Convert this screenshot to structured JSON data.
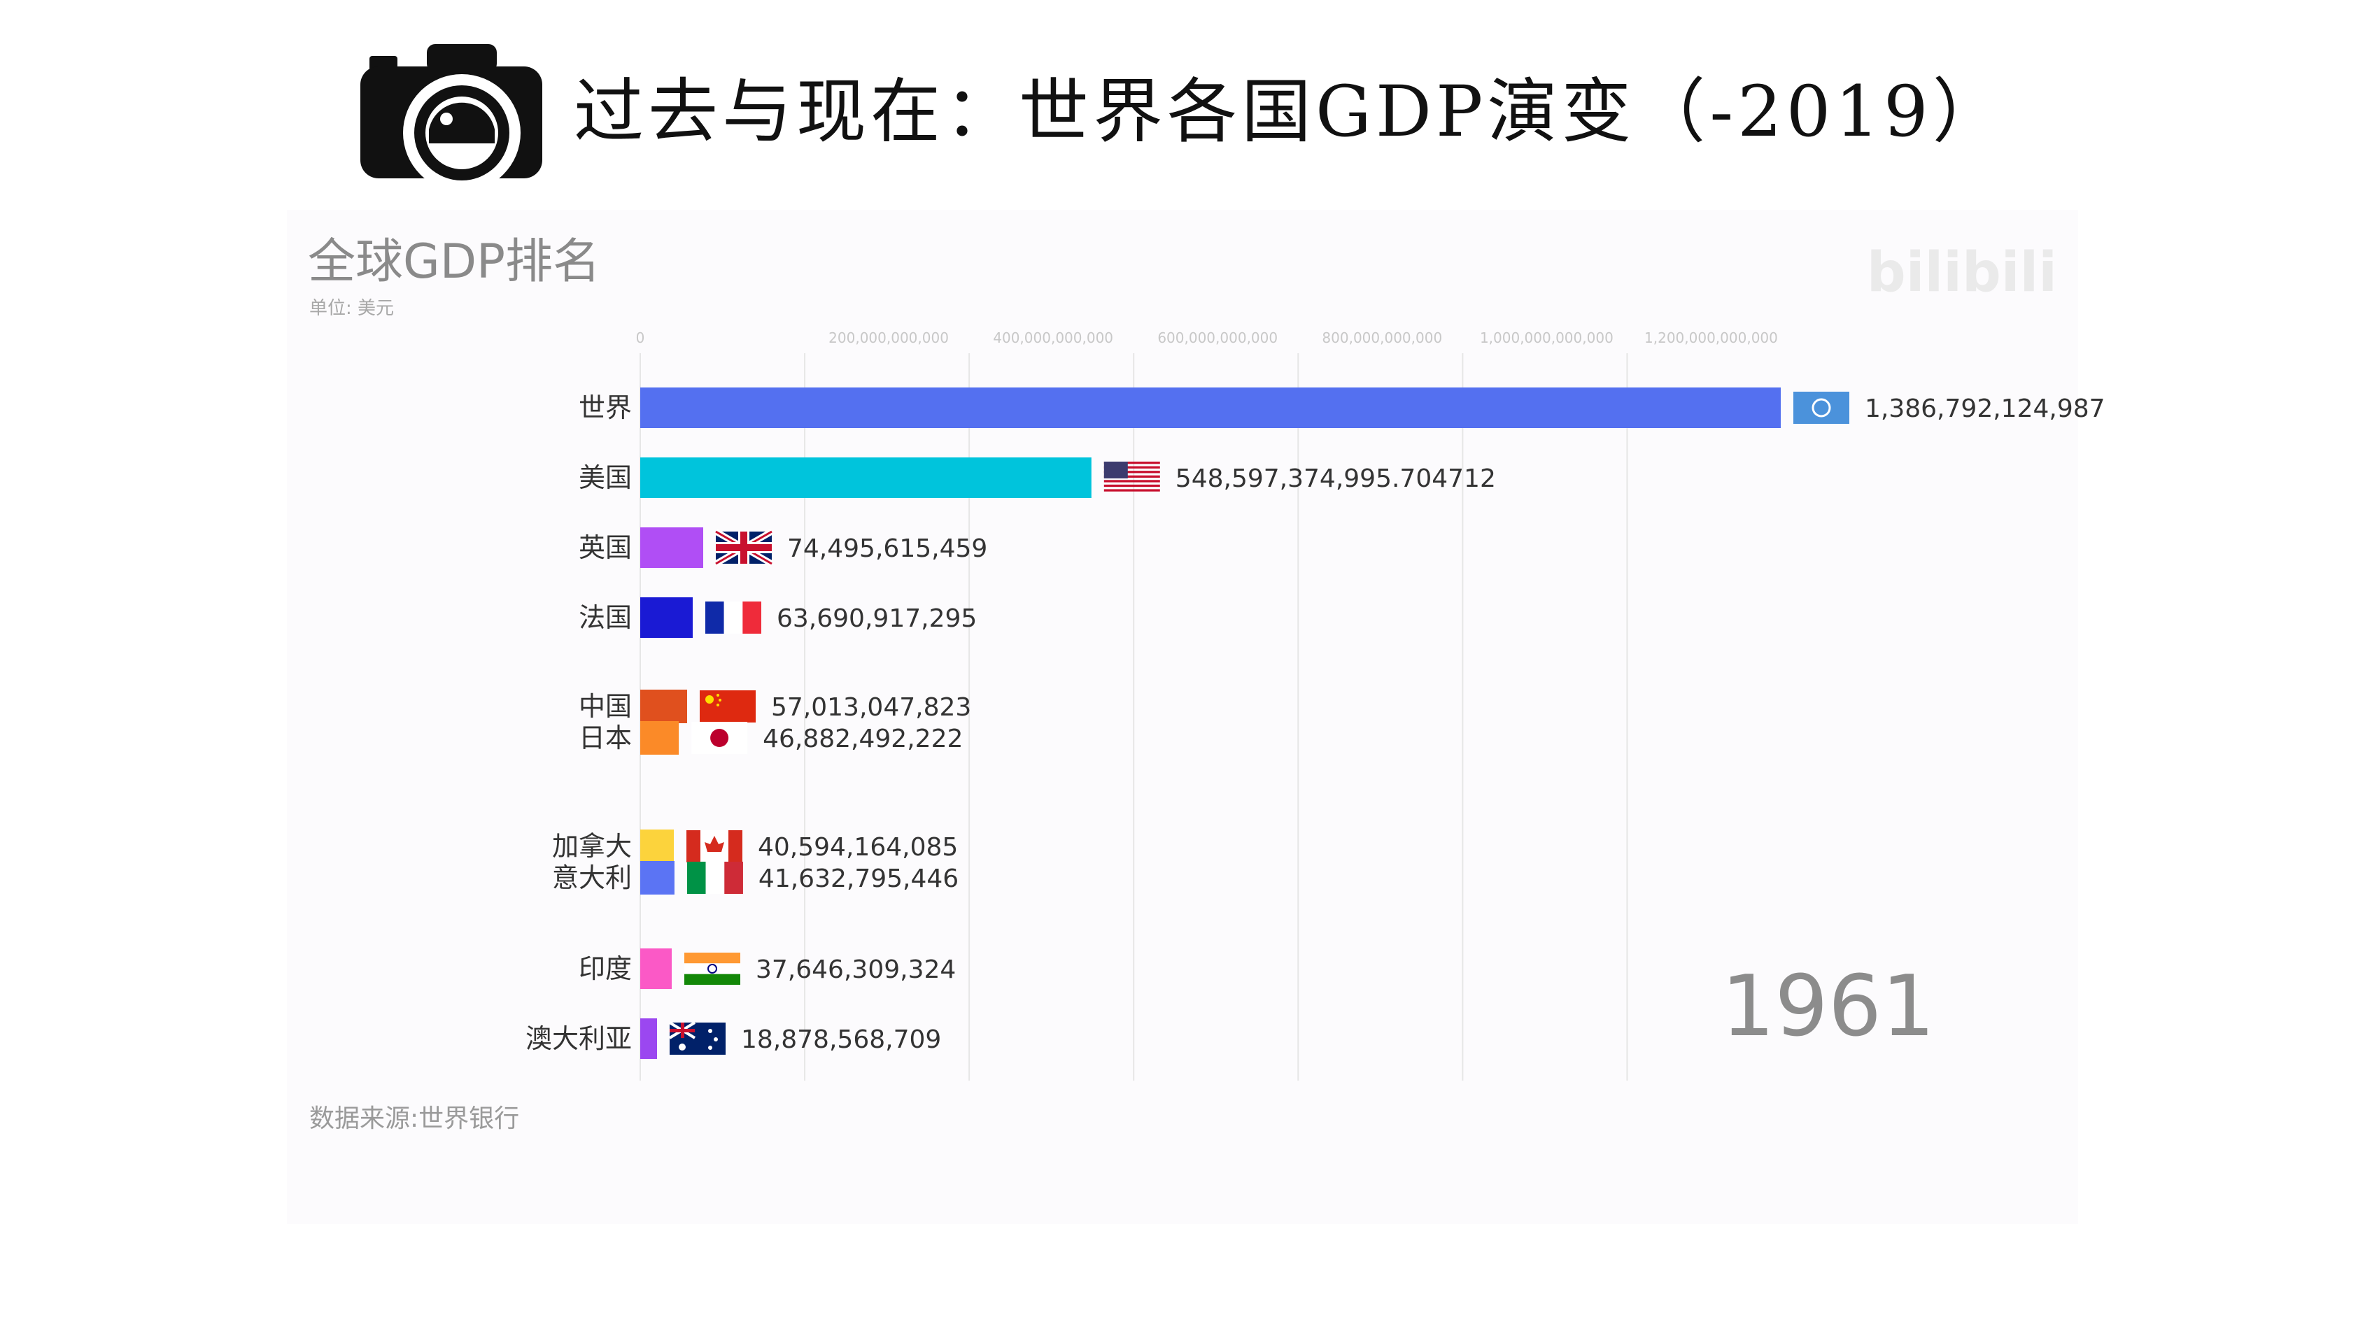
{
  "banner": {
    "title": "过去与现在：世界各国GDP演变（-2019）",
    "icon": "camera-icon"
  },
  "chart": {
    "title": "全球GDP排名",
    "unit": "单位: 美元",
    "source": "数据来源:世界银行",
    "year": "1961",
    "watermark": "bilibili"
  },
  "chart_data": {
    "type": "bar",
    "orientation": "horizontal",
    "title": "全球GDP排名",
    "unit": "单位: 美元",
    "year": "1961",
    "xlim": [
      0,
      1386792124987
    ],
    "x_ticks": [
      0,
      200000000000,
      400000000000,
      600000000000,
      800000000000,
      1000000000000,
      1200000000000
    ],
    "x_tick_labels": [
      "0",
      "200,000,000,000",
      "400,000,000,000",
      "600,000,000,000",
      "800,000,000,000",
      "1,000,000,000,000",
      "1,200,000,000,000"
    ],
    "grid": true,
    "categories": [
      "世界",
      "美国",
      "英国",
      "法国",
      "中国",
      "日本",
      "加拿大",
      "意大利",
      "印度",
      "澳大利亚"
    ],
    "values": [
      1386792124987,
      548597374995.7047,
      74495615459,
      63690917295,
      57013047823,
      46882492222,
      40594164085,
      41632795446,
      37646309324,
      18878568709
    ],
    "value_labels": [
      "1,386,792,124,987",
      "548,597,374,995.704712",
      "74,495,615,459",
      "63,690,917,295",
      "57,013,047,823",
      "46,882,492,222",
      "40,594,164,085",
      "41,632,795,446",
      "37,646,309,324",
      "18,878,568,709"
    ],
    "colors": [
      "#5470f0",
      "#00c4dc",
      "#b04ef5",
      "#1a1ad4",
      "#e0501e",
      "#fb8a28",
      "#fcd33c",
      "#5b74f4",
      "#fb59c6",
      "#9b47f0"
    ],
    "flags": [
      "un-flag-icon",
      "us-flag-icon",
      "uk-flag-icon",
      "france-flag-icon",
      "china-flag-icon",
      "japan-flag-icon",
      "canada-flag-icon",
      "italy-flag-icon",
      "india-flag-icon",
      "australia-flag-icon"
    ]
  }
}
